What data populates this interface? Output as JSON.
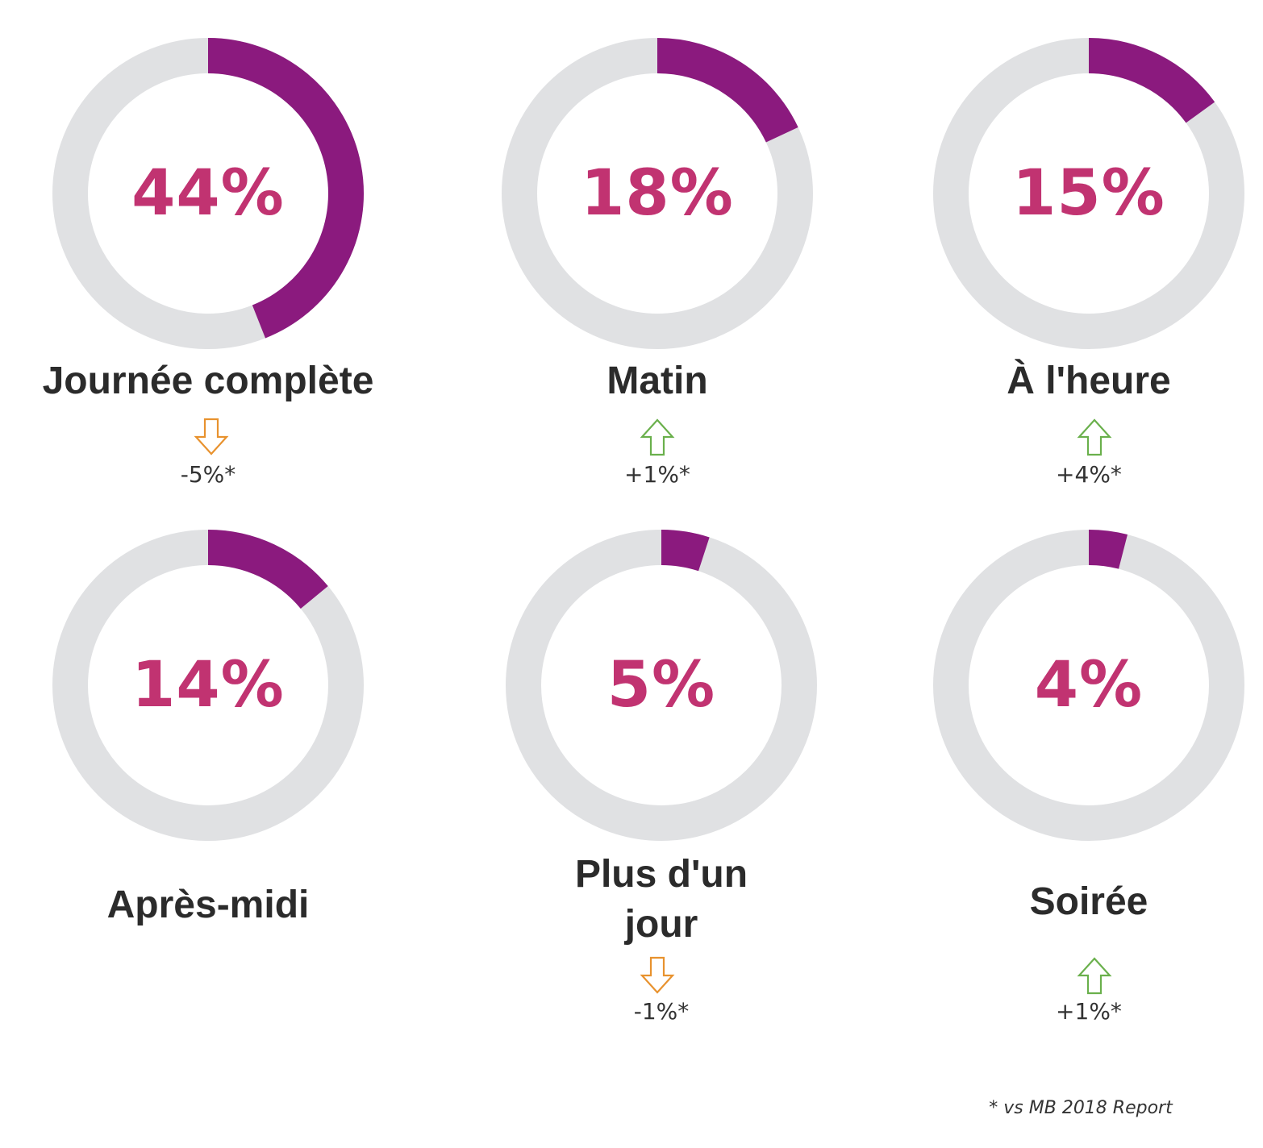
{
  "colors": {
    "fill": "#8b1a7e",
    "track": "#e0e1e3",
    "value_text": "#c13371",
    "label_text": "#2b2b2b",
    "down": "#e8922e",
    "up": "#6ab04c"
  },
  "chart_data": [
    {
      "type": "pie",
      "label": "Journée complète",
      "value": 44,
      "value_label": "44%",
      "change": -5,
      "change_label": "-5%*",
      "trend": "down"
    },
    {
      "type": "pie",
      "label": "Matin",
      "value": 18,
      "value_label": "18%",
      "change": 1,
      "change_label": "+1%*",
      "trend": "up"
    },
    {
      "type": "pie",
      "label": "À l'heure",
      "value": 15,
      "value_label": "15%",
      "change": 4,
      "change_label": "+4%*",
      "trend": "up"
    },
    {
      "type": "pie",
      "label": "Après-midi",
      "value": 14,
      "value_label": "14%",
      "change": null,
      "change_label": "",
      "trend": "none"
    },
    {
      "type": "pie",
      "label": "Plus d'un jour",
      "value": 5,
      "value_label": "5%",
      "change": -1,
      "change_label": "-1%*",
      "trend": "down"
    },
    {
      "type": "pie",
      "label": "Soirée",
      "value": 4,
      "value_label": "4%",
      "change": 1,
      "change_label": "+1%*",
      "trend": "up"
    }
  ],
  "footnote": "* vs MB 2018 Report"
}
